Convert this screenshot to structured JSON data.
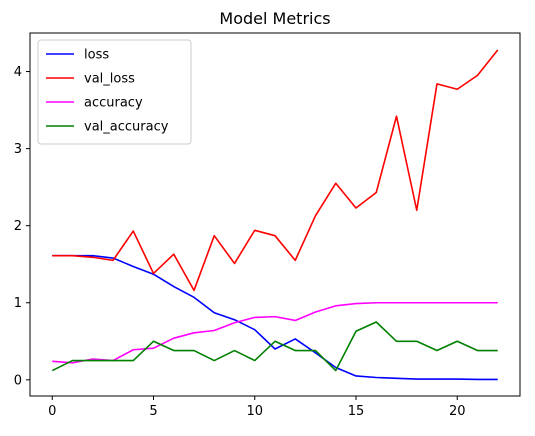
{
  "chart_data": {
    "type": "line",
    "title": "Model Metrics",
    "xlabel": "",
    "ylabel": "",
    "xlim": [
      -1.1,
      23.1
    ],
    "ylim": [
      -0.21,
      4.5
    ],
    "xticks": [
      0,
      5,
      10,
      15,
      20
    ],
    "yticks": [
      0,
      1,
      2,
      3,
      4
    ],
    "grid": false,
    "legend": "upper-left",
    "x": [
      0,
      1,
      2,
      3,
      4,
      5,
      6,
      7,
      8,
      9,
      10,
      11,
      12,
      13,
      14,
      15,
      16,
      17,
      18,
      19,
      20,
      21,
      22
    ],
    "series": [
      {
        "name": "loss",
        "color": "#0000ff",
        "values": [
          1.61,
          1.61,
          1.61,
          1.58,
          1.47,
          1.37,
          1.21,
          1.07,
          0.87,
          0.78,
          0.65,
          0.4,
          0.53,
          0.35,
          0.16,
          0.05,
          0.03,
          0.02,
          0.01,
          0.01,
          0.01,
          0.005,
          0.005
        ]
      },
      {
        "name": "val_loss",
        "color": "#ff0000",
        "values": [
          1.61,
          1.61,
          1.59,
          1.55,
          1.93,
          1.38,
          1.63,
          1.16,
          1.87,
          1.51,
          1.94,
          1.87,
          1.55,
          2.13,
          2.55,
          2.23,
          2.43,
          3.42,
          2.2,
          3.84,
          3.77,
          3.95,
          4.28
        ]
      },
      {
        "name": "accuracy",
        "color": "#ff00ff",
        "values": [
          0.24,
          0.22,
          0.27,
          0.25,
          0.39,
          0.41,
          0.54,
          0.61,
          0.64,
          0.74,
          0.81,
          0.82,
          0.77,
          0.88,
          0.96,
          0.99,
          1.0,
          1.0,
          1.0,
          1.0,
          1.0,
          1.0,
          1.0
        ]
      },
      {
        "name": "val_accuracy",
        "color": "#008000",
        "values": [
          0.12,
          0.25,
          0.25,
          0.25,
          0.25,
          0.5,
          0.38,
          0.38,
          0.25,
          0.38,
          0.25,
          0.5,
          0.38,
          0.38,
          0.12,
          0.63,
          0.75,
          0.5,
          0.5,
          0.38,
          0.5,
          0.38,
          0.38
        ]
      }
    ]
  }
}
